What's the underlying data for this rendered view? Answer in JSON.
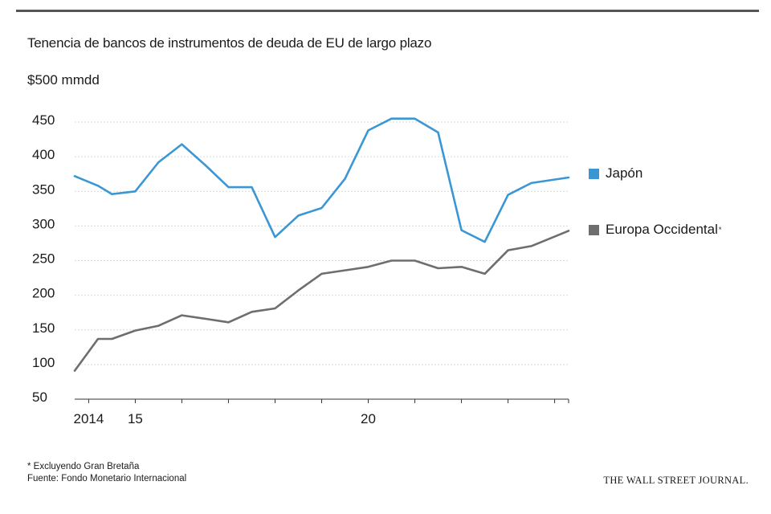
{
  "header": {
    "title": "Tenencia de bancos de instrumentos de deuda de EU de largo plazo",
    "unit_label": "$500 mmdd"
  },
  "legend": {
    "items": [
      {
        "label": "Japón",
        "color": "#3a97d4",
        "marker": ""
      },
      {
        "label": "Europa Occidental",
        "color": "#6e6e6e",
        "marker": "*"
      }
    ]
  },
  "footer": {
    "note": "* Excluyendo Gran Bretaña",
    "source": "Fuente: Fondo Monetario Internacional",
    "publisher_logo": "THE WALL STREET JOURNAL."
  },
  "chart_data": {
    "type": "line",
    "title": "Tenencia de bancos de instrumentos de deuda de EU de largo plazo",
    "ylabel": "$500 mmdd",
    "xlabel": "",
    "ylim": [
      50,
      450
    ],
    "yticks": [
      450,
      400,
      350,
      300,
      250,
      200,
      150,
      100,
      50
    ],
    "x_tick_labels": [
      {
        "x": 2014.0,
        "label": "2014"
      },
      {
        "x": 2015.0,
        "label": "15"
      },
      {
        "x": 2020.0,
        "label": "20"
      }
    ],
    "xlim": [
      2013.7,
      2024.3
    ],
    "grid": true,
    "legend_position": "right",
    "series": [
      {
        "name": "Japón",
        "color": "#3a97d4",
        "x": [
          2013.7,
          2014.2,
          2014.5,
          2015.0,
          2015.5,
          2016.0,
          2016.5,
          2017.0,
          2017.5,
          2018.0,
          2018.5,
          2019.0,
          2019.5,
          2020.0,
          2020.5,
          2021.0,
          2021.5,
          2022.0,
          2022.5,
          2023.0,
          2023.5,
          2024.3
        ],
        "values": [
          372,
          358,
          346,
          350,
          392,
          418,
          388,
          356,
          356,
          284,
          315,
          326,
          368,
          438,
          455,
          455,
          435,
          294,
          277,
          345,
          362,
          370
        ]
      },
      {
        "name": "Europa Occidental",
        "color": "#6e6e6e",
        "x": [
          2013.7,
          2014.2,
          2014.5,
          2015.0,
          2015.5,
          2016.0,
          2016.5,
          2017.0,
          2017.5,
          2018.0,
          2018.5,
          2019.0,
          2019.5,
          2020.0,
          2020.5,
          2021.0,
          2021.5,
          2022.0,
          2022.5,
          2023.0,
          2023.5,
          2024.3
        ],
        "values": [
          91,
          137,
          137,
          149,
          156,
          171,
          166,
          161,
          176,
          181,
          207,
          231,
          236,
          241,
          250,
          250,
          239,
          241,
          231,
          265,
          271,
          293
        ]
      }
    ]
  }
}
